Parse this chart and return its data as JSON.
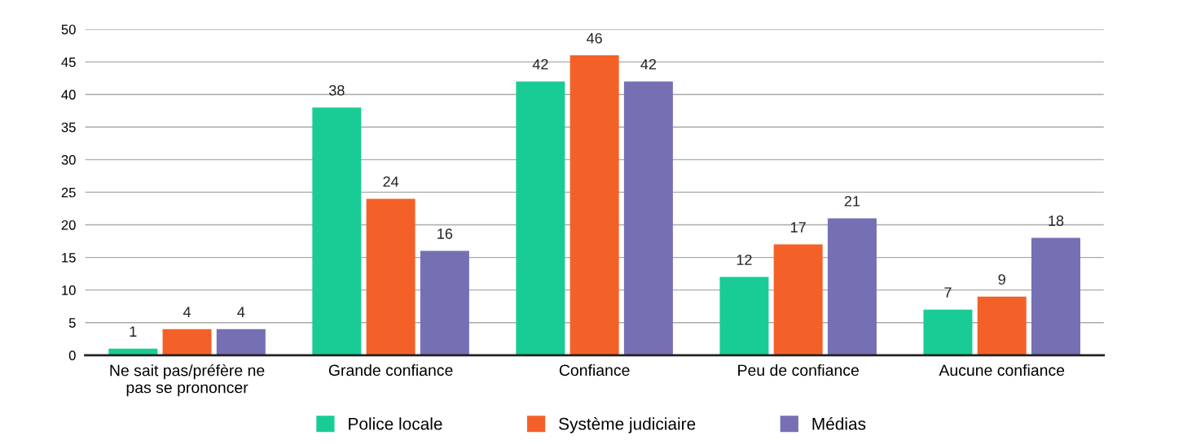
{
  "chart_data": {
    "type": "bar",
    "categories": [
      "Ne sait pas/préfère ne\npas se prononcer",
      "Grande confiance",
      "Confiance",
      "Peu de confiance",
      "Aucune confiance"
    ],
    "series": [
      {
        "name": "Police locale",
        "color": "#19cc95",
        "values": [
          1,
          38,
          42,
          12,
          7
        ]
      },
      {
        "name": "Système judiciaire",
        "color": "#f46128",
        "values": [
          4,
          24,
          46,
          17,
          9
        ]
      },
      {
        "name": "Médias",
        "color": "#7570b3",
        "values": [
          4,
          16,
          42,
          21,
          18
        ]
      }
    ],
    "ylim": [
      0,
      50
    ],
    "yticks": [
      0,
      5,
      10,
      15,
      20,
      25,
      30,
      35,
      40,
      45,
      50
    ],
    "grid": "y",
    "legend": "bottom",
    "data_labels": true
  }
}
